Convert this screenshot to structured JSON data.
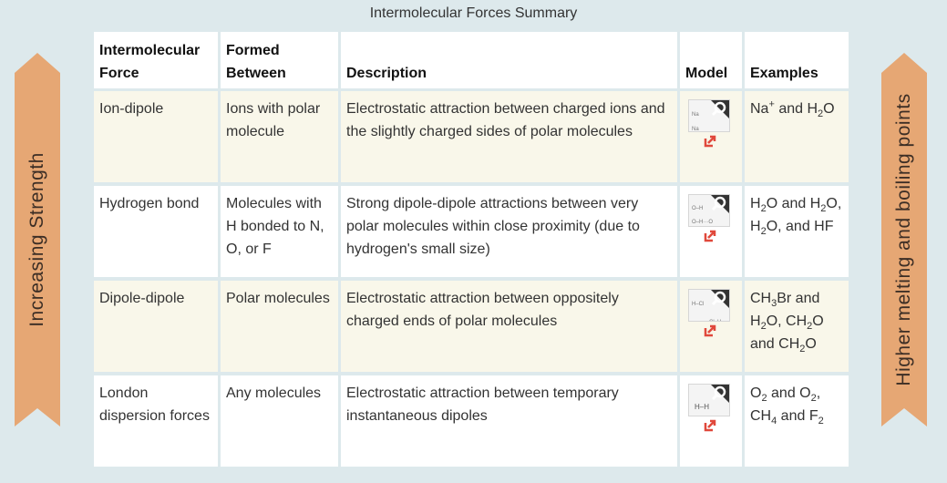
{
  "title": "Intermolecular Forces Summary",
  "left_ribbon": "Increasing Strength",
  "right_ribbon": "Higher melting and boiling points",
  "colors": {
    "ribbon": "#e6a774",
    "highlight_row": "#f9f7ea",
    "popout": "#e0483b",
    "background": "#dde9ec"
  },
  "headers": {
    "force": [
      "Intermolecular",
      "Force"
    ],
    "formed": [
      "Formed",
      "Between"
    ],
    "description": "Description",
    "model": "Model",
    "examples": "Examples"
  },
  "rows": [
    {
      "force": "Ion-dipole",
      "formed": "Ions with polar molecule",
      "description": "Electrostatic attraction between charged ions and the slightly charged sides of polar molecules",
      "model_icon": "ion-dipole-model-thumbnail",
      "examples_html": "Na<sup>+</sup> and H<sub>2</sub>O"
    },
    {
      "force": "Hydrogen bond",
      "formed": "Molecules with H bonded to N, O, or F",
      "description": "Strong dipole-dipole attractions between very polar molecules within close proximity (due to hydrogen's small size)",
      "model_icon": "hydrogen-bond-model-thumbnail",
      "examples_html": "H<sub>2</sub>O and H<sub>2</sub>O, H<sub>2</sub>O, and HF"
    },
    {
      "force": "Dipole-dipole",
      "formed": "Polar molecules",
      "description": "Electrostatic attraction between oppositely charged ends of polar molecules",
      "model_icon": "dipole-dipole-model-thumbnail",
      "examples_html": "CH<sub>3</sub>Br and H<sub>2</sub>O, CH<sub>2</sub>O and CH<sub>2</sub>O"
    },
    {
      "force": "London dispersion forces",
      "formed": "Any molecules",
      "description": "Electrostatic attraction between temporary instantaneous dipoles",
      "model_icon": "london-dispersion-model-thumbnail",
      "examples_html": "O<sub>2</sub> and O<sub>2</sub>, CH<sub>4</sub> and F<sub>2</sub>"
    }
  ]
}
